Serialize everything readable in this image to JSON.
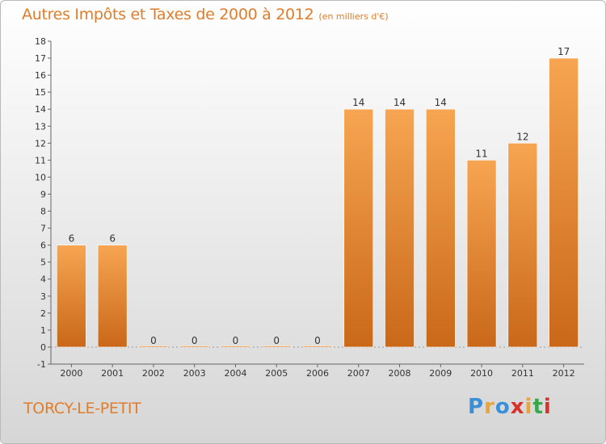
{
  "header": {
    "title": "Autres Impôts et Taxes de 2000 à 2012",
    "subtitle": "(en milliers d'€)"
  },
  "footer": {
    "town": "TORCY-LE-PETIT",
    "logo": {
      "letters": [
        "P",
        "r",
        "o",
        "x",
        "i",
        "t",
        "i"
      ],
      "colors": [
        "#3a8fd6",
        "#e8a33a",
        "#3a8fd6",
        "#d9322b",
        "#e8a33a",
        "#3aa84a",
        "#d9322b"
      ]
    }
  },
  "colors": {
    "bar_top": "#f7a552",
    "bar_bottom": "#c96818",
    "accent": "#e07d2a"
  },
  "chart_data": {
    "type": "bar",
    "title": "Autres Impôts et Taxes de 2000 à 2012",
    "subtitle": "(en milliers d'€)",
    "categories": [
      "2000",
      "2001",
      "2002",
      "2003",
      "2004",
      "2005",
      "2006",
      "2007",
      "2008",
      "2009",
      "2010",
      "2011",
      "2012"
    ],
    "values": [
      6,
      6,
      0,
      0,
      0,
      0,
      0,
      14,
      14,
      14,
      11,
      12,
      17
    ],
    "ylim": [
      -1,
      18
    ],
    "yticks": [
      -1,
      0,
      1,
      2,
      3,
      4,
      5,
      6,
      7,
      8,
      9,
      10,
      11,
      12,
      13,
      14,
      15,
      16,
      17,
      18
    ],
    "xlabel": "",
    "ylabel": "",
    "grid": false,
    "legend": "none"
  }
}
